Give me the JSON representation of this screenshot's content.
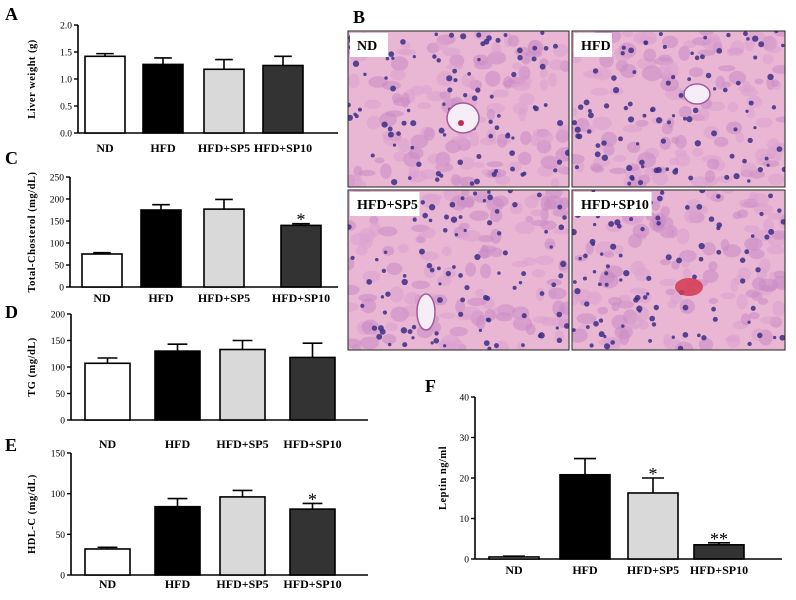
{
  "colors": {
    "ND": "#ffffff",
    "HFD": "#000000",
    "HFD+SP5": "#d9d9d9",
    "HFD+SP10": "#333333"
  },
  "histology": {
    "label": "B",
    "images": [
      "ND",
      "HFD",
      "HFD+SP5",
      "HFD+SP10"
    ]
  },
  "chart_data": [
    {
      "id": "A",
      "label": "A",
      "type": "bar",
      "categories": [
        "ND",
        "HFD",
        "HFD+SP5",
        "HFD+SP10"
      ],
      "values": [
        1.42,
        1.27,
        1.18,
        1.25
      ],
      "errors": [
        0.05,
        0.12,
        0.18,
        0.17
      ],
      "significance": [
        "",
        "",
        "",
        ""
      ],
      "ylabel": "Liver weight (g)",
      "ylim": [
        0,
        2.0
      ],
      "yticks": [
        "0.0",
        "0.5",
        "1.0",
        "1.5",
        "2.0"
      ]
    },
    {
      "id": "C",
      "label": "C",
      "type": "bar",
      "categories": [
        "ND",
        "HFD",
        "HFD+SP5",
        "HFD+SP10"
      ],
      "values": [
        75,
        175,
        177,
        140
      ],
      "errors": [
        3,
        12,
        22,
        4
      ],
      "significance": [
        "",
        "",
        "",
        "*"
      ],
      "ylabel": "Total-Chosterol (mg/dL)",
      "ylim": [
        0,
        250
      ],
      "yticks": [
        "0",
        "50",
        "100",
        "150",
        "200",
        "250"
      ]
    },
    {
      "id": "D",
      "label": "D",
      "type": "bar",
      "categories": [
        "ND",
        "HFD",
        "HFD+SP5",
        "HFD+SP10"
      ],
      "values": [
        107,
        130,
        133,
        118
      ],
      "errors": [
        10,
        13,
        17,
        27
      ],
      "significance": [
        "",
        "",
        "",
        ""
      ],
      "ylabel": "TG (mg/dL)",
      "ylim": [
        0,
        200
      ],
      "yticks": [
        "0",
        "50",
        "100",
        "150",
        "200"
      ]
    },
    {
      "id": "E",
      "label": "E",
      "type": "bar",
      "categories": [
        "ND",
        "HFD",
        "HFD+SP5",
        "HFD+SP10"
      ],
      "values": [
        32,
        84,
        96,
        81
      ],
      "errors": [
        2,
        10,
        8,
        7
      ],
      "significance": [
        "",
        "",
        "",
        "*"
      ],
      "ylabel": "HDL-C (mg/dL)",
      "ylim": [
        0,
        150
      ],
      "yticks": [
        "0",
        "50",
        "100",
        "150"
      ]
    },
    {
      "id": "F",
      "label": "F",
      "type": "bar",
      "categories": [
        "ND",
        "HFD",
        "HFD+SP5",
        "HFD+SP10"
      ],
      "values": [
        0.5,
        20.8,
        16.3,
        3.5
      ],
      "errors": [
        0.2,
        4.0,
        3.7,
        0.5
      ],
      "significance": [
        "",
        "",
        "*",
        "**"
      ],
      "ylabel": "Leptin ng/ml",
      "ylim": [
        0,
        40
      ],
      "yticks": [
        "0",
        "10",
        "20",
        "30",
        "40"
      ]
    }
  ]
}
